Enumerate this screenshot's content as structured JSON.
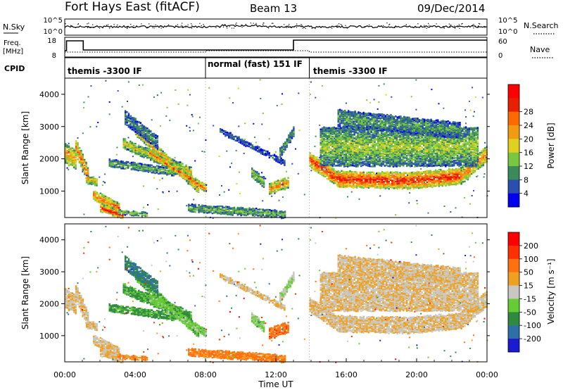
{
  "header": {
    "station": "Fort Hays East (fitACF)",
    "beam": "Beam 13",
    "date": "09/Dec/2014"
  },
  "top_panels": {
    "nsky_label": "N.Sky",
    "nsky_ticks": [
      "10^5",
      "10^0"
    ],
    "nsearch_label": "N.Search",
    "nsearch_ticks": [
      "10^5",
      "10^0"
    ],
    "freq_label_1": "Freq.",
    "freq_label_2": "[MHz]",
    "freq_ticks": [
      "18",
      "8"
    ],
    "nave_label": "Nave",
    "nave_ticks": [
      "60",
      "0"
    ],
    "cpid_label": "CPID"
  },
  "modes": [
    {
      "label": "themis -3300 IF",
      "start_h": 0,
      "end_h": 8.0
    },
    {
      "label": "normal (fast) 151 IF",
      "start_h": 8.0,
      "end_h": 13.9
    },
    {
      "label": "themis -3300 IF",
      "start_h": 13.9,
      "end_h": 24
    }
  ],
  "chart_data": [
    {
      "type": "heatmap",
      "name": "power",
      "ylabel": "Slant Range [km]",
      "yticks": [
        1000,
        2000,
        3000,
        4000
      ],
      "ylim": [
        180,
        4500
      ],
      "xlim": [
        0,
        24
      ],
      "colorbar_label": "Power [dB]",
      "colorbar_ticks": [
        "4",
        "8",
        "12",
        "16",
        "20",
        "24",
        "28"
      ],
      "colorbar_colors": [
        "#0000ee",
        "#2b4fb0",
        "#3a8a5a",
        "#77c840",
        "#e0d020",
        "#f29a10",
        "#ff6a00",
        "#e62000",
        "#ff0000"
      ]
    },
    {
      "type": "heatmap",
      "name": "velocity",
      "ylabel": "Slant Range [km]",
      "yticks": [
        1000,
        2000,
        3000,
        4000
      ],
      "ylim": [
        180,
        4500
      ],
      "xlim": [
        0,
        24
      ],
      "xticks": [
        "00:00",
        "04:00",
        "08:00",
        "12:00",
        "16:00",
        "20:00",
        "00:00"
      ],
      "xlabel": "Time UT",
      "colorbar_label": "Velocity [m s⁻¹]",
      "colorbar_ticks": [
        "200",
        "100",
        "50",
        "15",
        "-15",
        "-50",
        "-100",
        "-200"
      ],
      "colorbar_colors": [
        "#1a1ad0",
        "#2e6fa8",
        "#2f8a40",
        "#66cc33",
        "#c8c8c0",
        "#f0a020",
        "#ff7010",
        "#ff3000",
        "#ff0000"
      ]
    }
  ]
}
